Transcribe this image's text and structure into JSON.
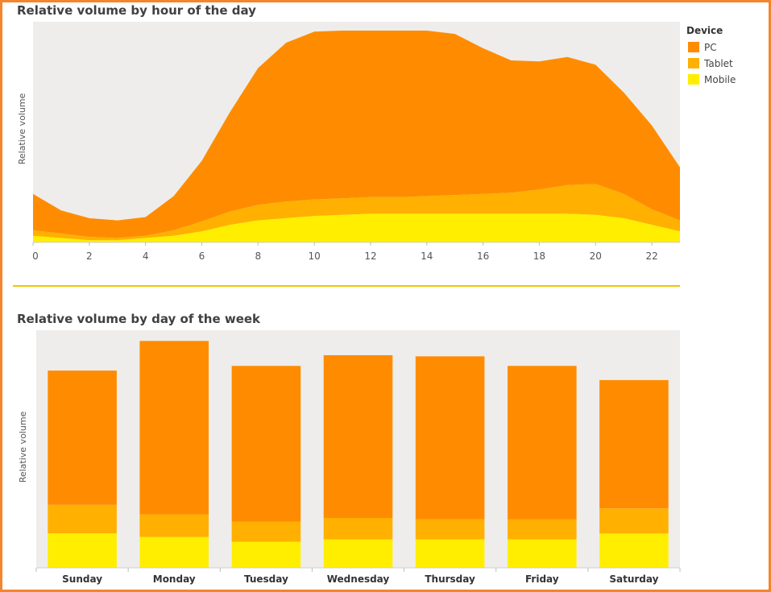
{
  "colors": {
    "pc": "#ff8c00",
    "tablet": "#ffb000",
    "mobile": "#ffee00",
    "plot_bg": "#eeedeb",
    "frame": "#f5842a",
    "divider": "#f2c400"
  },
  "legend": {
    "title": "Device",
    "items": [
      "PC",
      "Tablet",
      "Mobile"
    ]
  },
  "chart_data": [
    {
      "type": "area",
      "title": "Relative volume by hour of the day",
      "ylabel": "Relative volume",
      "xlabel": "",
      "stacked": true,
      "x": [
        0,
        1,
        2,
        3,
        4,
        5,
        6,
        7,
        8,
        9,
        10,
        11,
        12,
        13,
        14,
        15,
        16,
        17,
        18,
        19,
        20,
        21,
        22,
        23
      ],
      "xticks": [
        0,
        2,
        4,
        6,
        8,
        10,
        12,
        14,
        16,
        18,
        20,
        22
      ],
      "xlim": [
        0,
        23
      ],
      "ylim": [
        0,
        100
      ],
      "series": [
        {
          "name": "Mobile",
          "values": [
            3,
            2,
            1,
            1,
            2,
            3,
            5,
            8,
            10,
            11,
            12,
            12.5,
            13,
            13,
            13,
            13,
            13,
            13,
            13,
            13,
            12.5,
            11,
            8,
            5
          ]
        },
        {
          "name": "Tablet",
          "values": [
            2.5,
            2,
            1.5,
            1,
            1,
            2.5,
            4.5,
            6,
            7,
            7.5,
            7.5,
            7.5,
            7.5,
            7.5,
            8,
            8.5,
            9,
            9.5,
            11,
            13,
            14,
            11,
            7,
            5
          ]
        },
        {
          "name": "PC",
          "values": [
            16.5,
            10.5,
            8.5,
            8,
            8.5,
            15.5,
            27.5,
            45,
            62,
            72,
            76,
            76,
            75.5,
            75.5,
            75,
            73,
            66,
            60,
            58,
            58,
            54,
            46,
            38,
            24
          ]
        }
      ],
      "legend_position": "right"
    },
    {
      "type": "bar",
      "title": "Relative volume by day of the week",
      "ylabel": "Relative volume",
      "stacked": true,
      "categories": [
        "Sunday",
        "Monday",
        "Tuesday",
        "Wednesday",
        "Thursday",
        "Friday",
        "Saturday"
      ],
      "ylim": [
        0,
        100
      ],
      "series": [
        {
          "name": "Mobile",
          "values": [
            14.5,
            13,
            11,
            12,
            12,
            12,
            14.5
          ]
        },
        {
          "name": "Tablet",
          "values": [
            12,
            9.5,
            8.5,
            9,
            8.5,
            8.5,
            10.5
          ]
        },
        {
          "name": "PC",
          "values": [
            56.5,
            73,
            65.5,
            68.5,
            68.5,
            64.5,
            54
          ]
        }
      ]
    }
  ]
}
